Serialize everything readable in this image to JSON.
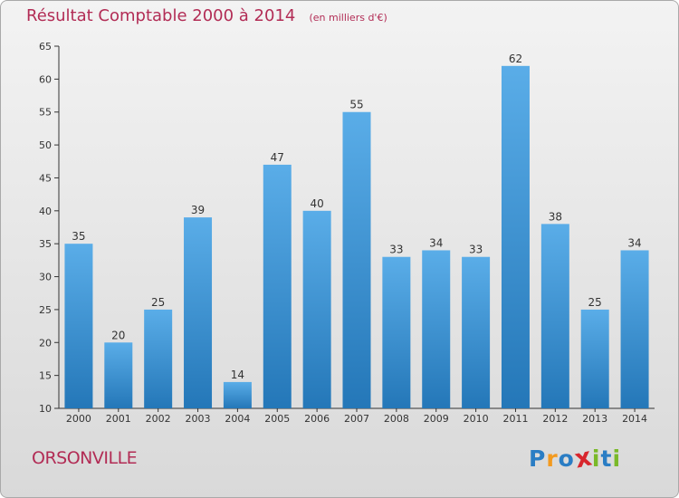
{
  "chart_data": {
    "type": "bar",
    "title": "Résultat Comptable 2000 à 2014",
    "subtitle": "(en milliers d'€)",
    "categories": [
      "2000",
      "2001",
      "2002",
      "2003",
      "2004",
      "2005",
      "2006",
      "2007",
      "2008",
      "2009",
      "2010",
      "2011",
      "2012",
      "2013",
      "2014"
    ],
    "values": [
      35,
      20,
      25,
      39,
      14,
      47,
      40,
      55,
      33,
      34,
      33,
      62,
      38,
      25,
      34
    ],
    "ylim": [
      10,
      65
    ],
    "yticks": [
      10,
      15,
      20,
      25,
      30,
      35,
      40,
      45,
      50,
      55,
      60,
      65
    ],
    "xlabel": "",
    "ylabel": "",
    "grid": false,
    "legend": "none",
    "bar_color_top": "#5aade8",
    "bar_color_bottom": "#2477b8"
  },
  "footer": {
    "town": "ORSONVILLE",
    "logo": [
      "P",
      "r",
      "o",
      "x",
      "i",
      "t",
      "i"
    ],
    "logo_colors": [
      "#2a7dc4",
      "#f39a1f",
      "#2a7dc4",
      "#d8262d",
      "#7ab929",
      "#2a7dc4",
      "#7ab929"
    ]
  },
  "colors": {
    "title": "#b22c55",
    "axis": "#333333"
  }
}
